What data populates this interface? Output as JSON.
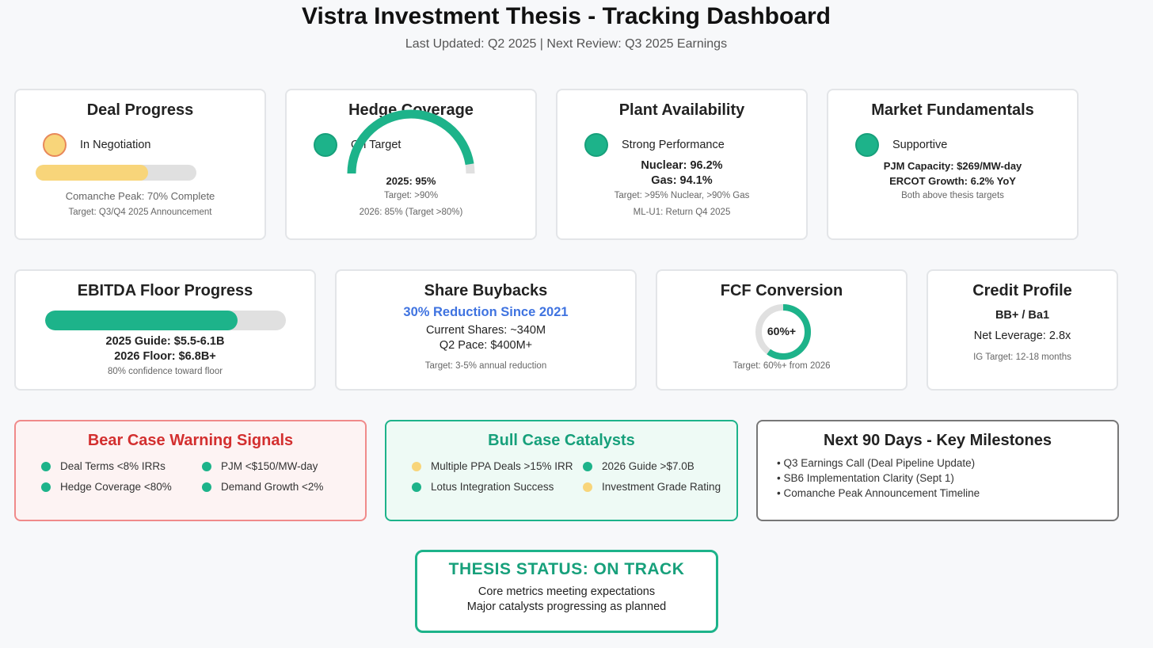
{
  "header": {
    "title": "Vistra Investment Thesis - Tracking Dashboard",
    "subtitle": "Last Updated: Q2 2025 | Next Review: Q3 2025 Earnings"
  },
  "colors": {
    "green": "#1db38a",
    "yellow": "#f8d57a",
    "orange_border": "#e8885a",
    "red": "#d32f2f",
    "blue": "#3f73e0",
    "gray_track": "#e0e0e0"
  },
  "deal_progress": {
    "title": "Deal Progress",
    "status": "In Negotiation",
    "progress_fraction": 0.7,
    "detail": "Comanche Peak: 70% Complete",
    "target": "Target: Q3/Q4 2025 Announcement"
  },
  "hedge_coverage": {
    "title": "Hedge Coverage",
    "status": "On Target",
    "gauge_fraction": 0.95,
    "line1": "2025: 95%",
    "line2": "Target: >90%",
    "line3": "2026: 85% (Target >80%)"
  },
  "plant_availability": {
    "title": "Plant Availability",
    "status": "Strong Performance",
    "nuclear": "Nuclear: 96.2%",
    "gas": "Gas: 94.1%",
    "target": "Target: >95% Nuclear, >90% Gas",
    "note": "ML-U1: Return Q4 2025"
  },
  "market_fundamentals": {
    "title": "Market Fundamentals",
    "status": "Supportive",
    "line1": "PJM Capacity: $269/MW-day",
    "line2": "ERCOT Growth: 6.2% YoY",
    "note": "Both above thesis targets"
  },
  "ebitda": {
    "title": "EBITDA Floor Progress",
    "progress_fraction": 0.8,
    "line1": "2025 Guide: $5.5-6.1B",
    "line2": "2026 Floor: $6.8B+",
    "note": "80% confidence toward floor"
  },
  "buybacks": {
    "title": "Share Buybacks",
    "highlight": "30% Reduction Since 2021",
    "line1": "Current Shares: ~340M",
    "line2": "Q2 Pace: $400M+",
    "note": "Target: 3-5% annual reduction"
  },
  "fcf": {
    "title": "FCF Conversion",
    "ring_label": "60%+",
    "ring_fraction": 0.6,
    "note": "Target: 60%+ from 2026"
  },
  "credit": {
    "title": "Credit Profile",
    "rating": "BB+ / Ba1",
    "leverage": "Net Leverage: 2.8x",
    "note": "IG Target: 12-18 months"
  },
  "bear_case": {
    "title": "Bear Case Warning Signals",
    "signals": [
      {
        "label": "Deal Terms <8% IRRs",
        "color": "#1db38a"
      },
      {
        "label": "PJM <$150/MW-day",
        "color": "#1db38a"
      },
      {
        "label": "Hedge Coverage <80%",
        "color": "#1db38a"
      },
      {
        "label": "Demand Growth <2%",
        "color": "#1db38a"
      }
    ]
  },
  "bull_case": {
    "title": "Bull Case Catalysts",
    "signals": [
      {
        "label": "Multiple PPA Deals >15% IRR",
        "color": "#f8d57a"
      },
      {
        "label": "2026 Guide >$7.0B",
        "color": "#1db38a"
      },
      {
        "label": "Lotus Integration Success",
        "color": "#1db38a"
      },
      {
        "label": "Investment Grade Rating",
        "color": "#f8d57a"
      }
    ]
  },
  "milestones": {
    "title": "Next 90 Days - Key Milestones",
    "items": [
      "• Q3 Earnings Call (Deal Pipeline Update)",
      "• SB6 Implementation Clarity (Sept 1)",
      "• Comanche Peak Announcement Timeline"
    ]
  },
  "thesis_status": {
    "title": "THESIS STATUS: ON TRACK",
    "line1": "Core metrics meeting expectations",
    "line2": "Major catalysts progressing as planned"
  }
}
